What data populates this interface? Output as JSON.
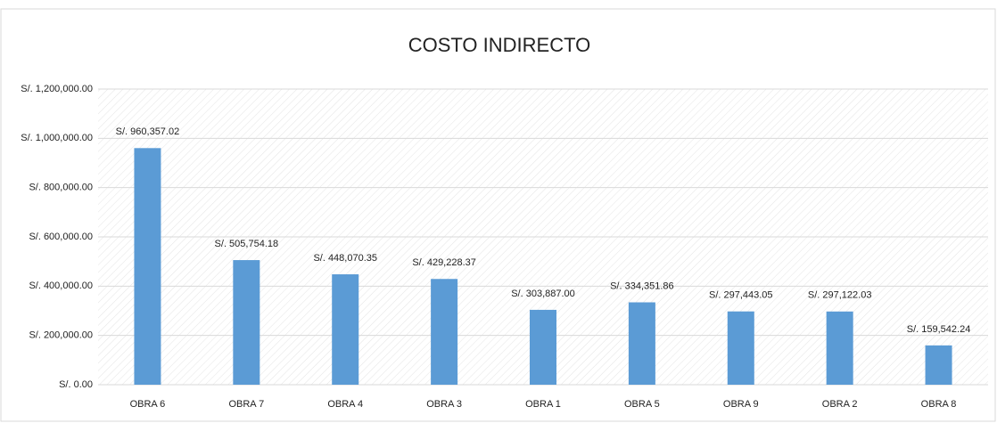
{
  "chart_data": {
    "type": "bar",
    "title": "COSTO INDIRECTO",
    "categories": [
      "OBRA 6",
      "OBRA 7",
      "OBRA 4",
      "OBRA 3",
      "OBRA 1",
      "OBRA 5",
      "OBRA 9",
      "OBRA 2",
      "OBRA 8"
    ],
    "values": [
      960357.02,
      505754.18,
      448070.35,
      429228.37,
      303887.0,
      334351.86,
      297443.05,
      297122.03,
      159542.24
    ],
    "value_labels": [
      "S/. 960,357.02",
      "S/. 505,754.18",
      "S/. 448,070.35",
      "S/. 429,228.37",
      "S/. 303,887.00",
      "S/. 334,351.86",
      "S/. 297,443.05",
      "S/. 297,122.03",
      "S/. 159,542.24"
    ],
    "color": "#5b9bd5",
    "ylim": [
      0,
      1200000
    ],
    "yticks": [
      {
        "value": 0,
        "label": "S/. 0.00"
      },
      {
        "value": 200000,
        "label": "S/. 200,000.00"
      },
      {
        "value": 400000,
        "label": "S/. 400,000.00"
      },
      {
        "value": 600000,
        "label": "S/. 600,000.00"
      },
      {
        "value": 800000,
        "label": "S/. 800,000.00"
      },
      {
        "value": 1000000,
        "label": "S/. 1,000,000.00"
      },
      {
        "value": 1200000,
        "label": "S/. 1,200,000.00"
      }
    ],
    "grid": true
  }
}
